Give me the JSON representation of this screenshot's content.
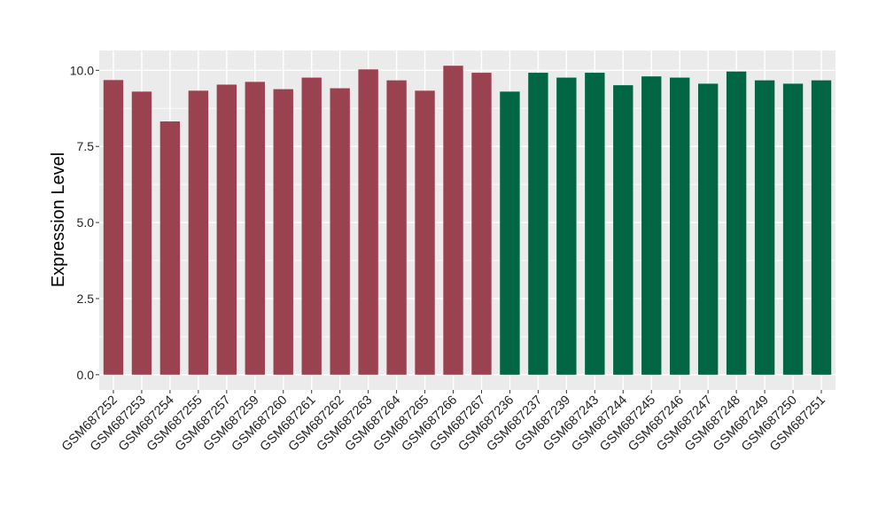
{
  "chart_data": {
    "type": "bar",
    "title": "",
    "xlabel": "",
    "ylabel": "Expression Level",
    "ylim": [
      -0.5,
      10.65
    ],
    "yticks": [
      0.0,
      2.5,
      5.0,
      7.5,
      10.0
    ],
    "ytick_labels": [
      "0.0",
      "2.5",
      "5.0",
      "7.5",
      "10.0"
    ],
    "grid": true,
    "legend": "none",
    "colors": {
      "group1": "#9b4250",
      "group2": "#006644",
      "panel_bg": "#ebebeb",
      "grid": "#ffffff"
    },
    "categories": [
      "GSM687252",
      "GSM687253",
      "GSM687254",
      "GSM687255",
      "GSM687257",
      "GSM687259",
      "GSM687260",
      "GSM687261",
      "GSM687262",
      "GSM687263",
      "GSM687264",
      "GSM687265",
      "GSM687266",
      "GSM687267",
      "GSM687236",
      "GSM687237",
      "GSM687239",
      "GSM687243",
      "GSM687244",
      "GSM687245",
      "GSM687246",
      "GSM687247",
      "GSM687248",
      "GSM687249",
      "GSM687250",
      "GSM687251"
    ],
    "values": [
      9.68,
      9.3,
      8.32,
      9.33,
      9.53,
      9.62,
      9.38,
      9.76,
      9.41,
      10.03,
      9.67,
      9.33,
      10.15,
      9.92,
      9.3,
      9.92,
      9.76,
      9.92,
      9.51,
      9.8,
      9.76,
      9.56,
      9.96,
      9.67,
      9.56,
      9.67
    ],
    "groups": [
      1,
      1,
      1,
      1,
      1,
      1,
      1,
      1,
      1,
      1,
      1,
      1,
      1,
      1,
      2,
      2,
      2,
      2,
      2,
      2,
      2,
      2,
      2,
      2,
      2,
      2
    ]
  }
}
